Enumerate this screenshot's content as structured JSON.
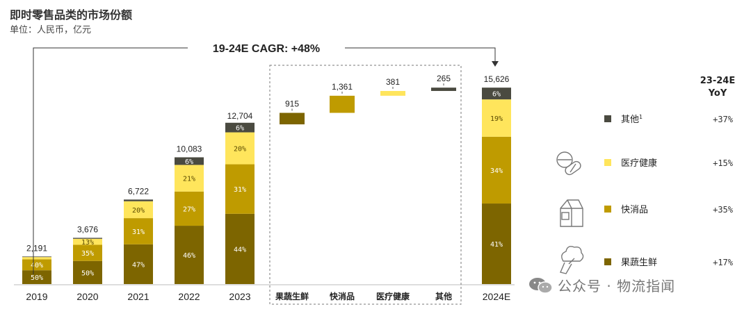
{
  "title": "即时零售品类的市场份额",
  "subtitle": "单位：人民币，亿元",
  "cagr_label": "19-24E CAGR: +48%",
  "legend_header": {
    "line1": "23-24E",
    "line2": "YoY"
  },
  "legend": [
    {
      "name": "其他",
      "sup": "1",
      "yoy": "+37%",
      "color": "#4a4a40",
      "icon": ""
    },
    {
      "name": "医疗健康",
      "sup": "",
      "yoy": "+15%",
      "color": "#ffe55c",
      "icon": "pills-icon"
    },
    {
      "name": "快消品",
      "sup": "",
      "yoy": "+35%",
      "color": "#bf9b00",
      "icon": "milk-carton-icon"
    },
    {
      "name": "果蔬生鲜",
      "sup": "",
      "yoy": "+17%",
      "color": "#7d6500",
      "icon": "broccoli-icon"
    }
  ],
  "watermark": "公众号 · 物流指闻",
  "chart_data": {
    "type": "bar",
    "title": "即时零售品类的市场份额",
    "subtitle": "单位：人民币，亿元",
    "stacked_bars": {
      "categories": [
        "2019",
        "2020",
        "2021",
        "2022",
        "2023",
        "2024E"
      ],
      "totals": [
        2191,
        3676,
        6722,
        10083,
        12704,
        15626
      ],
      "total_labels": [
        "2,191",
        "3,676",
        "6,722",
        "10,083",
        "12,704",
        "15,626"
      ],
      "series": [
        {
          "name": "果蔬生鲜",
          "percent": [
            50,
            50,
            47,
            46,
            44,
            41
          ],
          "labels": [
            "50%",
            "50%",
            "47%",
            "46%",
            "44%",
            "41%"
          ]
        },
        {
          "name": "快消品",
          "percent": [
            40,
            35,
            31,
            27,
            31,
            34
          ],
          "labels": [
            "40%",
            "35%",
            "31%",
            "27%",
            "31%",
            "34%"
          ]
        },
        {
          "name": "医疗健康",
          "percent": [
            8,
            13,
            20,
            21,
            20,
            19
          ],
          "labels": [
            "",
            "13%",
            "20%",
            "21%",
            "20%",
            "19%"
          ]
        },
        {
          "name": "其他",
          "percent": [
            2,
            2,
            2,
            6,
            6,
            6
          ],
          "labels": [
            "",
            "",
            "",
            "6%",
            "6%",
            "6%"
          ]
        }
      ]
    },
    "waterfall": {
      "categories": [
        "果蔬生鲜",
        "快消品",
        "医疗健康",
        "其他"
      ],
      "values": [
        915,
        1361,
        381,
        265
      ],
      "labels": [
        "915",
        "1,361",
        "381",
        "265"
      ]
    },
    "annotation": "19-24E CAGR: +48%"
  }
}
